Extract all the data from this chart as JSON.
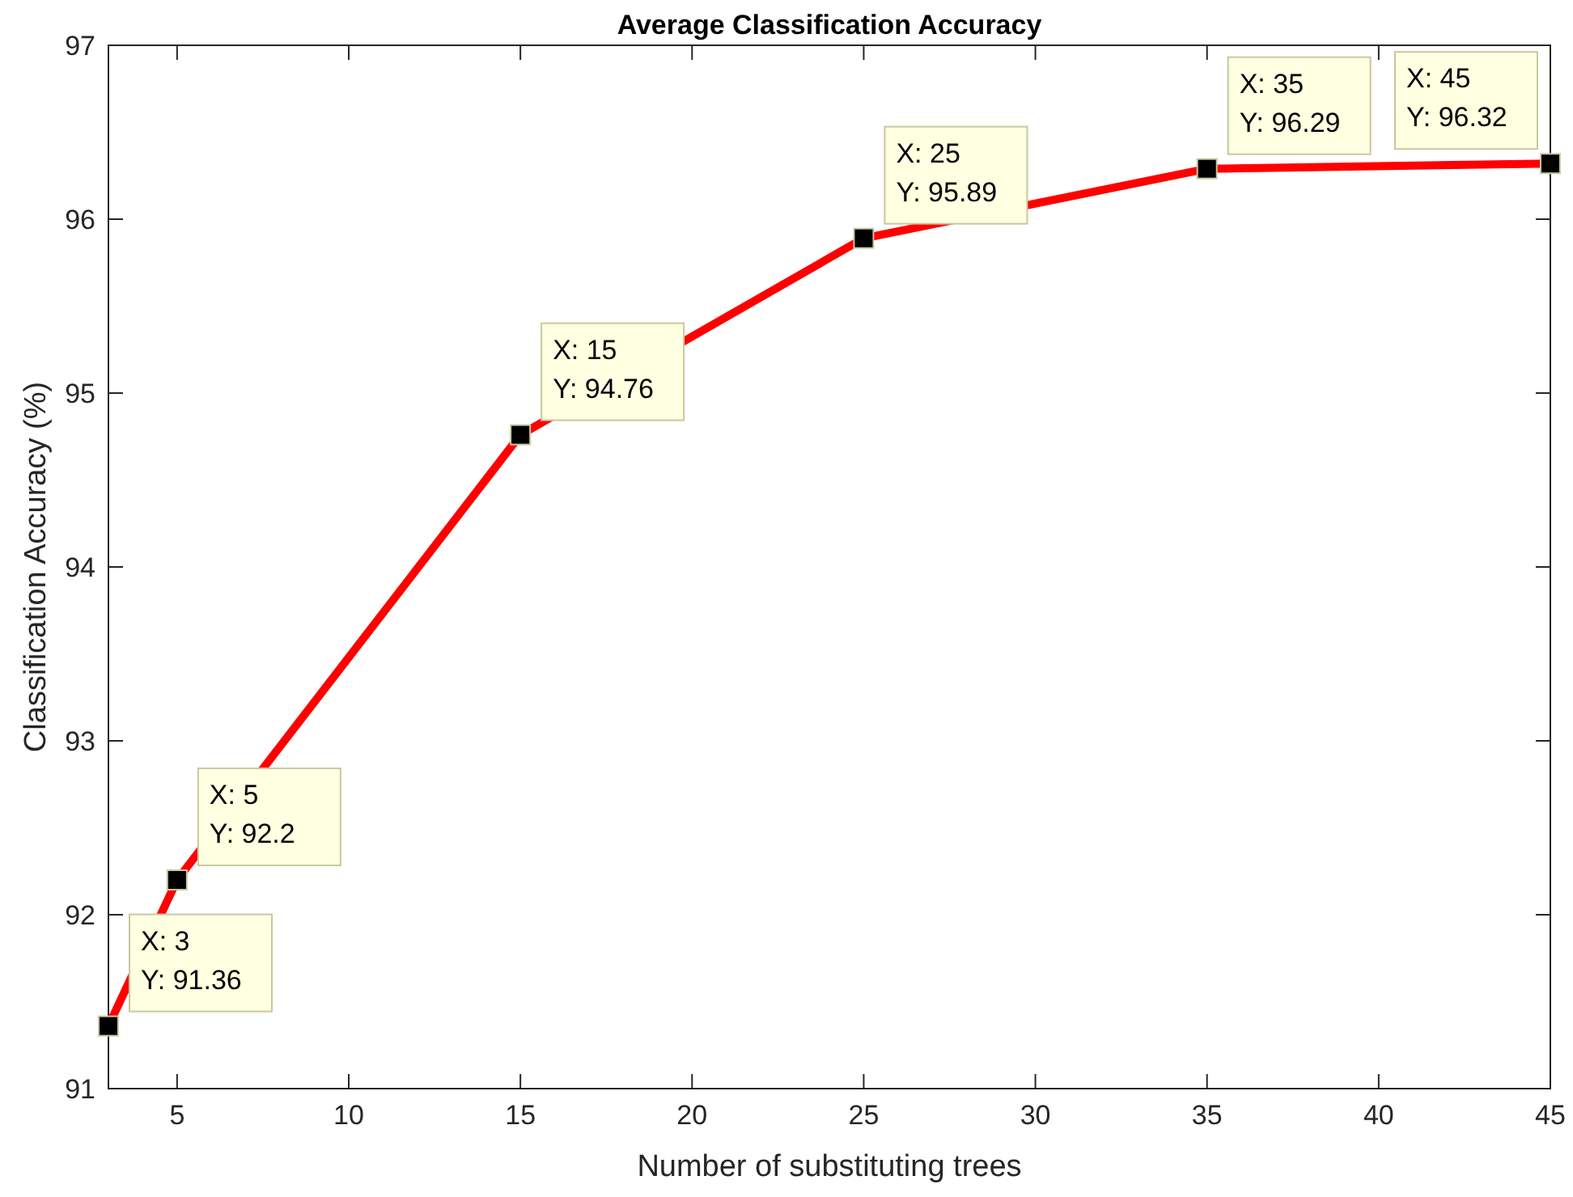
{
  "chart_data": {
    "type": "line",
    "title": "Average Classification Accuracy",
    "xlabel": "Number of substituting trees",
    "ylabel": "Classification Accuracy (%)",
    "x": [
      3,
      5,
      15,
      25,
      35,
      45
    ],
    "series": [
      {
        "color": "#ff0000",
        "values": [
          91.36,
          92.2,
          94.76,
          95.89,
          96.29,
          96.32
        ]
      }
    ],
    "xlim": [
      3,
      45
    ],
    "xticks": [
      5,
      10,
      15,
      20,
      25,
      30,
      35,
      40,
      45
    ],
    "ylim": [
      91,
      97
    ],
    "yticks": [
      91,
      92,
      93,
      94,
      95,
      96,
      97
    ],
    "grid": false,
    "marker": "square",
    "line_style": "solid",
    "annotations": [
      {
        "text": "X: 3\nY: 91.36",
        "x": 3,
        "y": 91.36
      },
      {
        "text": "X: 5\nY: 92.2",
        "x": 5,
        "y": 92.2
      },
      {
        "text": "X: 15\nY: 94.76",
        "x": 15,
        "y": 94.76
      },
      {
        "text": "X: 25\nY: 95.89",
        "x": 25,
        "y": 95.89
      },
      {
        "text": "X: 35\nY: 96.29",
        "x": 35,
        "y": 96.29
      },
      {
        "text": "X: 45\nY: 96.32",
        "x": 45,
        "y": 96.32
      }
    ]
  }
}
